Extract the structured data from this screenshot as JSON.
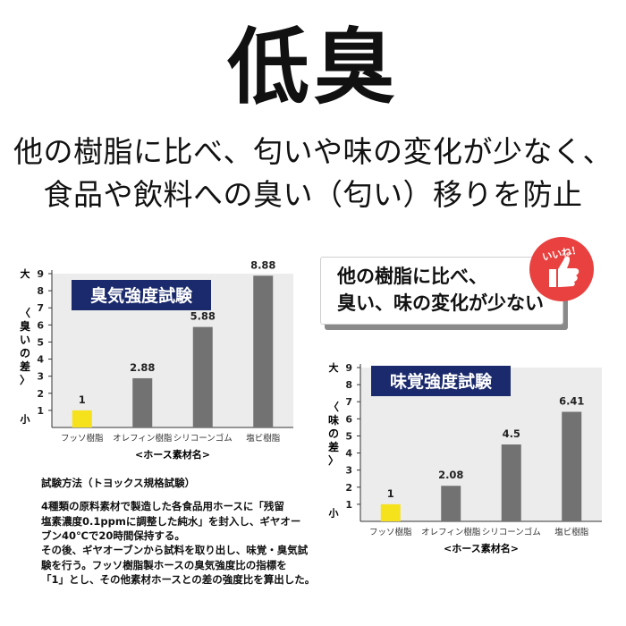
{
  "header": {
    "title": "低臭",
    "subtitle_line1": "他の樹脂に比べ、匂いや味の変化が少なく、",
    "subtitle_line2": "食品や飲料への臭い（匂い）移りを防止"
  },
  "callout": {
    "line1": "他の樹脂に比べ、",
    "line2": "臭い、味の変化が少ない"
  },
  "badge": {
    "text": "いいね！",
    "icon": "thumbs-up-icon"
  },
  "method": {
    "heading": "試験方法（トヨックス規格試験）",
    "lines": [
      "4種類の原料素材で製造した各食品用ホースに「残留",
      "塩素濃度0.1ppmに調整した純水」を封入し、ギヤオー",
      "ブン40℃で20時間保持する。",
      "その後、ギヤオーブンから試料を取り出し、味覚・臭気試",
      "験を行う。フッソ樹脂製ホースの臭気強度比の指標を",
      "「1」とし、その他素材ホースとの差の強度比を算出した。"
    ]
  },
  "colors": {
    "highlight": "#f5e11c",
    "bar": "#727272",
    "title_box": "#1a2a6c",
    "badge": "#e8413f"
  },
  "chart_data": [
    {
      "type": "bar",
      "title": "臭気強度試験",
      "categories": [
        "フッソ樹脂",
        "オレフィン樹脂",
        "シリコーンゴム",
        "塩ビ樹脂"
      ],
      "values": [
        1,
        2.88,
        5.88,
        8.88
      ],
      "value_labels": [
        "1",
        "2.88",
        "5.88",
        "8.88"
      ],
      "xlabel": "<ホース素材名>",
      "ylabel": "〈臭いの差〉",
      "y_top_label": "大",
      "y_bottom_label": "小",
      "yticks": [
        "1",
        "2",
        "3",
        "4",
        "5",
        "6",
        "7",
        "8",
        "9"
      ],
      "ylim": [
        0,
        9
      ],
      "grid": false
    },
    {
      "type": "bar",
      "title": "味覚強度試験",
      "categories": [
        "フッソ樹脂",
        "オレフィン樹脂",
        "シリコーンゴム",
        "塩ビ樹脂"
      ],
      "values": [
        1,
        2.08,
        4.5,
        6.41
      ],
      "value_labels": [
        "1",
        "2.08",
        "4.5",
        "6.41"
      ],
      "xlabel": "<ホース素材名>",
      "ylabel": "〈味の差〉",
      "y_top_label": "大",
      "y_bottom_label": "小",
      "yticks": [
        "1",
        "2",
        "3",
        "4",
        "5",
        "6",
        "7",
        "8",
        "9"
      ],
      "ylim": [
        0,
        9
      ],
      "grid": false
    }
  ]
}
